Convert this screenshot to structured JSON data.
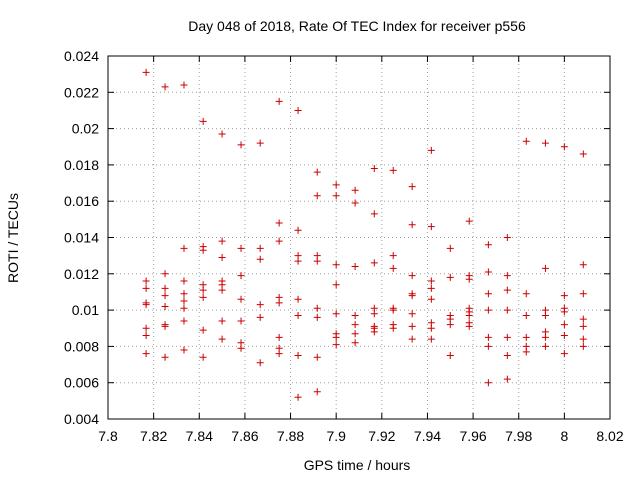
{
  "chart_data": {
    "type": "scatter",
    "title": "Day 048 of 2018, Rate Of TEC Index for receiver p556",
    "xlabel": "GPS time / hours",
    "ylabel": "ROTI / TECUs",
    "xlim": [
      7.8,
      8.02
    ],
    "ylim": [
      0.004,
      0.024
    ],
    "x_ticks": [
      7.8,
      7.82,
      7.84,
      7.86,
      7.88,
      7.9,
      7.92,
      7.94,
      7.96,
      7.98,
      8.0,
      8.02
    ],
    "x_tick_labels": [
      "7.8",
      "7.82",
      "7.84",
      "7.86",
      "7.88",
      "7.9",
      "7.92",
      "7.94",
      "7.96",
      "7.98",
      "8",
      "8.02"
    ],
    "y_ticks": [
      0.004,
      0.006,
      0.008,
      0.01,
      0.012,
      0.014,
      0.016,
      0.018,
      0.02,
      0.022,
      0.024
    ],
    "y_tick_labels": [
      "0.004",
      "0.006",
      "0.008",
      "0.01",
      "0.012",
      "0.014",
      "0.016",
      "0.018",
      "0.02",
      "0.022",
      "0.024"
    ],
    "marker": "+",
    "marker_color": "#cc0000",
    "series": [
      {
        "name": "ROTI",
        "points": [
          [
            7.8167,
            0.0231
          ],
          [
            7.8167,
            0.0116
          ],
          [
            7.8167,
            0.0112
          ],
          [
            7.8167,
            0.0104
          ],
          [
            7.8167,
            0.0103
          ],
          [
            7.8167,
            0.009
          ],
          [
            7.8167,
            0.0086
          ],
          [
            7.8167,
            0.0076
          ],
          [
            7.825,
            0.0223
          ],
          [
            7.825,
            0.012
          ],
          [
            7.825,
            0.0112
          ],
          [
            7.825,
            0.0108
          ],
          [
            7.825,
            0.0102
          ],
          [
            7.825,
            0.0092
          ],
          [
            7.825,
            0.0091
          ],
          [
            7.825,
            0.0074
          ],
          [
            7.8333,
            0.0224
          ],
          [
            7.8333,
            0.0134
          ],
          [
            7.8333,
            0.0116
          ],
          [
            7.8333,
            0.0109
          ],
          [
            7.8333,
            0.0105
          ],
          [
            7.8333,
            0.0101
          ],
          [
            7.8333,
            0.0094
          ],
          [
            7.8333,
            0.0078
          ],
          [
            7.8417,
            0.0204
          ],
          [
            7.8417,
            0.0135
          ],
          [
            7.8417,
            0.0133
          ],
          [
            7.8417,
            0.0114
          ],
          [
            7.8417,
            0.0111
          ],
          [
            7.8417,
            0.0107
          ],
          [
            7.8417,
            0.0089
          ],
          [
            7.8417,
            0.0074
          ],
          [
            7.85,
            0.0197
          ],
          [
            7.85,
            0.0138
          ],
          [
            7.85,
            0.0129
          ],
          [
            7.85,
            0.0116
          ],
          [
            7.85,
            0.0114
          ],
          [
            7.85,
            0.0111
          ],
          [
            7.85,
            0.0094
          ],
          [
            7.85,
            0.0084
          ],
          [
            7.8583,
            0.0191
          ],
          [
            7.8583,
            0.0134
          ],
          [
            7.8583,
            0.0119
          ],
          [
            7.8583,
            0.0106
          ],
          [
            7.8583,
            0.0094
          ],
          [
            7.8583,
            0.0082
          ],
          [
            7.8583,
            0.0079
          ],
          [
            7.8667,
            0.0192
          ],
          [
            7.8667,
            0.0134
          ],
          [
            7.8667,
            0.0128
          ],
          [
            7.8667,
            0.0103
          ],
          [
            7.8667,
            0.0096
          ],
          [
            7.8667,
            0.0071
          ],
          [
            7.875,
            0.0215
          ],
          [
            7.875,
            0.0148
          ],
          [
            7.875,
            0.0138
          ],
          [
            7.875,
            0.0107
          ],
          [
            7.875,
            0.0104
          ],
          [
            7.875,
            0.0085
          ],
          [
            7.875,
            0.0079
          ],
          [
            7.875,
            0.0076
          ],
          [
            7.8833,
            0.021
          ],
          [
            7.8833,
            0.0144
          ],
          [
            7.8833,
            0.013
          ],
          [
            7.8833,
            0.0127
          ],
          [
            7.8833,
            0.0106
          ],
          [
            7.8833,
            0.0097
          ],
          [
            7.8833,
            0.0075
          ],
          [
            7.8833,
            0.0052
          ],
          [
            7.8917,
            0.0176
          ],
          [
            7.8917,
            0.0163
          ],
          [
            7.8917,
            0.013
          ],
          [
            7.8917,
            0.0127
          ],
          [
            7.8917,
            0.0101
          ],
          [
            7.8917,
            0.0096
          ],
          [
            7.8917,
            0.0074
          ],
          [
            7.8917,
            0.0055
          ],
          [
            7.9,
            0.0169
          ],
          [
            7.9,
            0.0163
          ],
          [
            7.9,
            0.0125
          ],
          [
            7.9,
            0.0114
          ],
          [
            7.9,
            0.0098
          ],
          [
            7.9,
            0.0087
          ],
          [
            7.9,
            0.0085
          ],
          [
            7.9,
            0.0081
          ],
          [
            7.9083,
            0.0166
          ],
          [
            7.9083,
            0.0159
          ],
          [
            7.9083,
            0.0124
          ],
          [
            7.9083,
            0.0097
          ],
          [
            7.9083,
            0.0092
          ],
          [
            7.9083,
            0.0087
          ],
          [
            7.9083,
            0.0082
          ],
          [
            7.9167,
            0.0178
          ],
          [
            7.9167,
            0.0153
          ],
          [
            7.9167,
            0.0126
          ],
          [
            7.9167,
            0.0101
          ],
          [
            7.9167,
            0.0098
          ],
          [
            7.9167,
            0.0091
          ],
          [
            7.9167,
            0.009
          ],
          [
            7.9167,
            0.0088
          ],
          [
            7.925,
            0.0177
          ],
          [
            7.925,
            0.013
          ],
          [
            7.925,
            0.0123
          ],
          [
            7.925,
            0.0101
          ],
          [
            7.925,
            0.01
          ],
          [
            7.925,
            0.0092
          ],
          [
            7.925,
            0.009
          ],
          [
            7.9333,
            0.0168
          ],
          [
            7.9333,
            0.0147
          ],
          [
            7.9333,
            0.0119
          ],
          [
            7.9333,
            0.0109
          ],
          [
            7.9333,
            0.0108
          ],
          [
            7.9333,
            0.0098
          ],
          [
            7.9333,
            0.0091
          ],
          [
            7.9333,
            0.0084
          ],
          [
            7.9417,
            0.0188
          ],
          [
            7.9417,
            0.0146
          ],
          [
            7.9417,
            0.0116
          ],
          [
            7.9417,
            0.0112
          ],
          [
            7.9417,
            0.0106
          ],
          [
            7.9417,
            0.0093
          ],
          [
            7.9417,
            0.009
          ],
          [
            7.9417,
            0.0084
          ],
          [
            7.95,
            0.0134
          ],
          [
            7.95,
            0.0118
          ],
          [
            7.95,
            0.0097
          ],
          [
            7.95,
            0.0095
          ],
          [
            7.95,
            0.0092
          ],
          [
            7.95,
            0.0075
          ],
          [
            7.9583,
            0.0149
          ],
          [
            7.9583,
            0.0119
          ],
          [
            7.9583,
            0.0117
          ],
          [
            7.9583,
            0.0101
          ],
          [
            7.9583,
            0.0099
          ],
          [
            7.9583,
            0.0097
          ],
          [
            7.9583,
            0.0093
          ],
          [
            7.9583,
            0.0091
          ],
          [
            7.9667,
            0.0136
          ],
          [
            7.9667,
            0.0121
          ],
          [
            7.9667,
            0.0109
          ],
          [
            7.9667,
            0.01
          ],
          [
            7.9667,
            0.0085
          ],
          [
            7.9667,
            0.008
          ],
          [
            7.9667,
            0.006
          ],
          [
            7.975,
            0.014
          ],
          [
            7.975,
            0.0119
          ],
          [
            7.975,
            0.0111
          ],
          [
            7.975,
            0.01
          ],
          [
            7.975,
            0.0085
          ],
          [
            7.975,
            0.0075
          ],
          [
            7.975,
            0.0062
          ],
          [
            7.9833,
            0.0193
          ],
          [
            7.9833,
            0.0109
          ],
          [
            7.9833,
            0.0097
          ],
          [
            7.9833,
            0.0085
          ],
          [
            7.9833,
            0.008
          ],
          [
            7.9833,
            0.0077
          ],
          [
            7.9917,
            0.0192
          ],
          [
            7.9917,
            0.0123
          ],
          [
            7.9917,
            0.01
          ],
          [
            7.9917,
            0.0097
          ],
          [
            7.9917,
            0.0088
          ],
          [
            7.9917,
            0.0085
          ],
          [
            7.9917,
            0.008
          ],
          [
            8.0,
            0.019
          ],
          [
            8.0,
            0.0108
          ],
          [
            8.0,
            0.0101
          ],
          [
            8.0,
            0.0099
          ],
          [
            8.0,
            0.0092
          ],
          [
            8.0,
            0.0086
          ],
          [
            8.0,
            0.0076
          ],
          [
            8.0083,
            0.0186
          ],
          [
            8.0083,
            0.0125
          ],
          [
            8.0083,
            0.0109
          ],
          [
            8.0083,
            0.0095
          ],
          [
            8.0083,
            0.0091
          ],
          [
            8.0083,
            0.0084
          ],
          [
            8.0083,
            0.008
          ]
        ]
      }
    ]
  }
}
